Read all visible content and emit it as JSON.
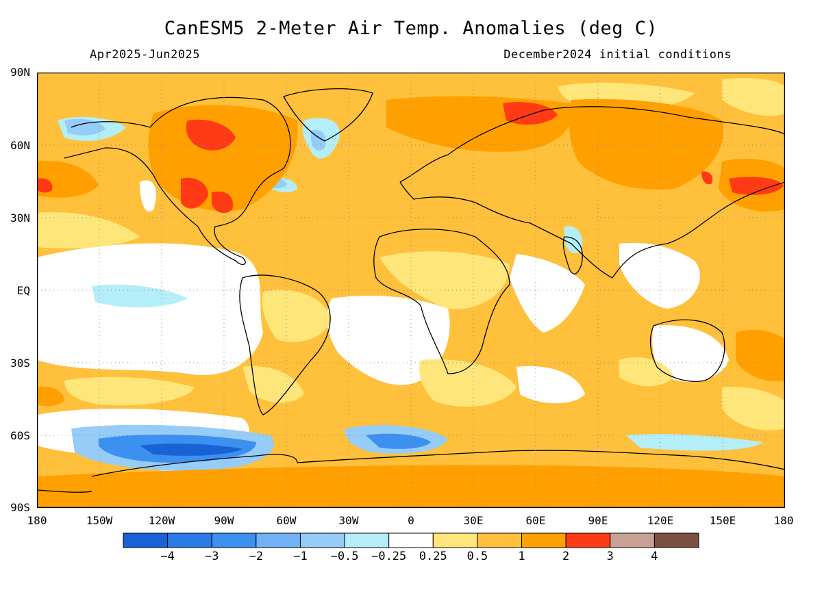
{
  "title": "CanESM5 2-Meter Air Temp. Anomalies (deg C)",
  "period": "Apr2025-Jun2025",
  "init": "December2024 initial conditions",
  "lat_labels": [
    "90N",
    "60N",
    "30N",
    "EQ",
    "30S",
    "60S",
    "90S"
  ],
  "lon_labels": [
    "180",
    "150W",
    "120W",
    "90W",
    "60W",
    "30W",
    "0",
    "30E",
    "60E",
    "90E",
    "120E",
    "150E",
    "180"
  ],
  "colorbar": {
    "colors": [
      "#1862d6",
      "#2a7ae8",
      "#3c90f0",
      "#72b2f6",
      "#96ccf8",
      "#b4eef8",
      "#ffffff",
      "#ffe67a",
      "#ffc03c",
      "#ffa000",
      "#ff3a14",
      "#c9a094",
      "#7a5042"
    ],
    "labels": [
      "−4",
      "−3",
      "−2",
      "−1",
      "−0.5",
      "−0.25",
      "0.25",
      "0.5",
      "1",
      "2",
      "3",
      "4"
    ]
  },
  "map_colors": {
    "land_outline": "#000000",
    "grid": "#888888",
    "frame": "#000000"
  }
}
